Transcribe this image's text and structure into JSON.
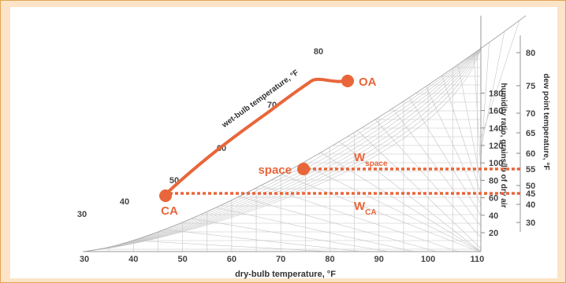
{
  "chart": {
    "x_axis": {
      "title": "dry-bulb temperature, °F",
      "ticks": [
        "30",
        "40",
        "50",
        "60",
        "70",
        "80",
        "90",
        "100",
        "110"
      ]
    },
    "humidity_axis": {
      "title": "humidity ratio, grains/lb of dry air",
      "ticks": [
        "20",
        "40",
        "60",
        "80",
        "100",
        "120",
        "140",
        "160",
        "180"
      ]
    },
    "dew_point_axis": {
      "title": "dew point temperature, °F",
      "ticks": [
        "30",
        "40",
        "45",
        "50",
        "55",
        "60",
        "65",
        "70",
        "75",
        "80"
      ]
    },
    "wet_bulb": {
      "title": "wet-bulb temperature, °F",
      "labels": [
        "30",
        "40",
        "50",
        "60",
        "70",
        "80"
      ]
    }
  },
  "points": {
    "ca": "CA",
    "space": "space",
    "oa": "OA"
  },
  "ratios": {
    "w_space": {
      "main": "W",
      "sub": "space"
    },
    "w_ca": {
      "main": "W",
      "sub": "CA"
    }
  },
  "colors": {
    "accent": "#e8663a",
    "grid": "#c4c4c4",
    "frame_bg": "#fde4c8",
    "frame_border": "#e0a552"
  }
}
